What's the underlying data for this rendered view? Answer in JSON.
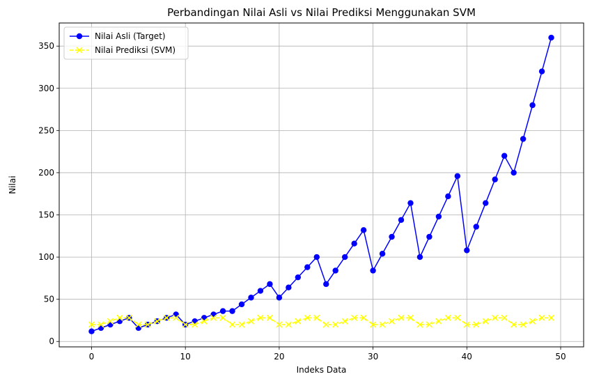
{
  "chart_data": {
    "type": "line",
    "title": "Perbandingan Nilai Asli vs Nilai Prediksi Menggunakan SVM",
    "xlabel": "Indeks Data",
    "ylabel": "Nilai",
    "xlim": [
      -3.45,
      52.45
    ],
    "ylim": [
      -6.4,
      377.4
    ],
    "xticks": [
      0,
      10,
      20,
      30,
      40,
      50
    ],
    "yticks": [
      0,
      50,
      100,
      150,
      200,
      250,
      300,
      350
    ],
    "xtick_labels": [
      "0",
      "10",
      "20",
      "30",
      "40",
      "50"
    ],
    "ytick_labels": [
      "0",
      "50",
      "100",
      "150",
      "200",
      "250",
      "300",
      "350"
    ],
    "grid": true,
    "legend_position": "top-left",
    "x": [
      0,
      1,
      2,
      3,
      4,
      5,
      6,
      7,
      8,
      9,
      10,
      11,
      12,
      13,
      14,
      15,
      16,
      17,
      18,
      19,
      20,
      21,
      22,
      23,
      24,
      25,
      26,
      27,
      28,
      29,
      30,
      31,
      32,
      33,
      34,
      35,
      36,
      37,
      38,
      39,
      40,
      41,
      42,
      43,
      44,
      45,
      46,
      47,
      48,
      49
    ],
    "series": [
      {
        "name": "Nilai Asli (Target)",
        "color": "#0000ff",
        "marker": "circle",
        "linestyle": "solid",
        "values": [
          12,
          16,
          20,
          24,
          28,
          16,
          20,
          24,
          28,
          32,
          20,
          24,
          28,
          32,
          36,
          36,
          44,
          52,
          60,
          68,
          52,
          64,
          76,
          88,
          100,
          68,
          84,
          100,
          116,
          132,
          84,
          104,
          124,
          144,
          164,
          100,
          124,
          148,
          172,
          196,
          108,
          136,
          164,
          192,
          220,
          200,
          240,
          280,
          320,
          360
        ]
      },
      {
        "name": "Nilai Prediksi (SVM)",
        "color": "#ffff00",
        "marker": "x",
        "linestyle": "dashed",
        "values": [
          20,
          20,
          24,
          28,
          28,
          20,
          20,
          24,
          28,
          28,
          20,
          20,
          24,
          28,
          28,
          20,
          20,
          24,
          28,
          28,
          20,
          20,
          24,
          28,
          28,
          20,
          20,
          24,
          28,
          28,
          20,
          20,
          24,
          28,
          28,
          20,
          20,
          24,
          28,
          28,
          20,
          20,
          24,
          28,
          28,
          20,
          20,
          24,
          28,
          28
        ]
      }
    ]
  }
}
